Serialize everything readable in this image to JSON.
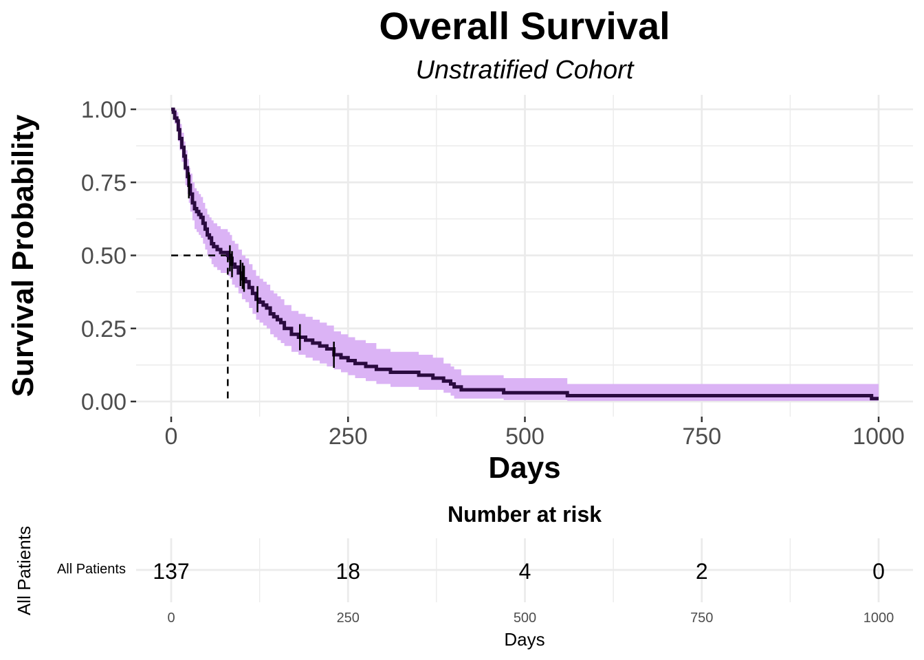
{
  "chart_data": [
    {
      "type": "line",
      "subtype": "kaplan-meier",
      "title": "Overall Survival",
      "subtitle": "Unstratified Cohort",
      "xlabel": "Days",
      "ylabel": "Survival Probability",
      "xlim": [
        0,
        1000
      ],
      "ylim": [
        0,
        1
      ],
      "xticks": [
        "0",
        "250",
        "500",
        "750",
        "1000"
      ],
      "yticks": [
        "0.00",
        "0.25",
        "0.50",
        "0.75",
        "1.00"
      ],
      "grid": true,
      "legend": "none",
      "colors": {
        "line": "#2a0a3f",
        "ci": "#dbb3f5",
        "grid": "#ebebeb"
      },
      "median_survival_days": 80,
      "series": [
        {
          "x": [
            0,
            3,
            5,
            8,
            10,
            12,
            15,
            18,
            20,
            23,
            25,
            27,
            30,
            33,
            36,
            39,
            42,
            45,
            48,
            51,
            54,
            57,
            60,
            65,
            70,
            75,
            80,
            83,
            86,
            90,
            95,
            100,
            105,
            110,
            115,
            120,
            125,
            130,
            135,
            140,
            145,
            150,
            155,
            160,
            170,
            180,
            190,
            200,
            210,
            220,
            230,
            240,
            250,
            260,
            275,
            290,
            310,
            330,
            350,
            370,
            385,
            395,
            400,
            410,
            420,
            450,
            470,
            500,
            530,
            555,
            560,
            590,
            700,
            800,
            900,
            990,
            1000
          ],
          "y": [
            1.0,
            0.99,
            0.97,
            0.96,
            0.93,
            0.9,
            0.87,
            0.84,
            0.8,
            0.77,
            0.74,
            0.71,
            0.68,
            0.66,
            0.65,
            0.64,
            0.63,
            0.61,
            0.59,
            0.57,
            0.56,
            0.54,
            0.53,
            0.52,
            0.51,
            0.51,
            0.5,
            0.49,
            0.47,
            0.46,
            0.44,
            0.42,
            0.41,
            0.39,
            0.37,
            0.35,
            0.34,
            0.33,
            0.32,
            0.3,
            0.29,
            0.28,
            0.27,
            0.25,
            0.23,
            0.22,
            0.21,
            0.2,
            0.19,
            0.18,
            0.16,
            0.15,
            0.14,
            0.13,
            0.12,
            0.11,
            0.1,
            0.1,
            0.09,
            0.08,
            0.07,
            0.06,
            0.05,
            0.04,
            0.04,
            0.04,
            0.03,
            0.03,
            0.03,
            0.03,
            0.02,
            0.02,
            0.02,
            0.02,
            0.02,
            0.01,
            0.01
          ],
          "lower": [
            1.0,
            0.97,
            0.95,
            0.93,
            0.89,
            0.86,
            0.82,
            0.79,
            0.74,
            0.71,
            0.68,
            0.65,
            0.62,
            0.59,
            0.58,
            0.57,
            0.56,
            0.54,
            0.52,
            0.5,
            0.49,
            0.47,
            0.46,
            0.45,
            0.44,
            0.44,
            0.43,
            0.42,
            0.4,
            0.39,
            0.37,
            0.35,
            0.34,
            0.32,
            0.3,
            0.28,
            0.27,
            0.26,
            0.25,
            0.23,
            0.22,
            0.21,
            0.2,
            0.19,
            0.17,
            0.16,
            0.15,
            0.14,
            0.13,
            0.12,
            0.11,
            0.1,
            0.09,
            0.08,
            0.07,
            0.06,
            0.05,
            0.05,
            0.04,
            0.04,
            0.03,
            0.02,
            0.01,
            0.01,
            0.01,
            0.01,
            0.005,
            0.005,
            0.005,
            0.005,
            0.002,
            0.002,
            0.002,
            0.002,
            0.002,
            0.002,
            0.002
          ],
          "upper": [
            1.0,
            1.0,
            1.0,
            0.99,
            0.97,
            0.95,
            0.92,
            0.89,
            0.86,
            0.83,
            0.8,
            0.78,
            0.75,
            0.73,
            0.72,
            0.71,
            0.7,
            0.68,
            0.66,
            0.64,
            0.63,
            0.62,
            0.61,
            0.6,
            0.59,
            0.59,
            0.58,
            0.57,
            0.55,
            0.54,
            0.52,
            0.5,
            0.49,
            0.47,
            0.45,
            0.43,
            0.42,
            0.41,
            0.4,
            0.38,
            0.37,
            0.36,
            0.35,
            0.33,
            0.31,
            0.3,
            0.29,
            0.28,
            0.27,
            0.26,
            0.24,
            0.23,
            0.22,
            0.21,
            0.2,
            0.18,
            0.17,
            0.17,
            0.16,
            0.15,
            0.13,
            0.12,
            0.11,
            0.09,
            0.09,
            0.09,
            0.08,
            0.08,
            0.08,
            0.08,
            0.06,
            0.06,
            0.06,
            0.06,
            0.06,
            0.06,
            0.06
          ]
        }
      ],
      "censor_marks": [
        {
          "x": 25,
          "y": 0.74
        },
        {
          "x": 83,
          "y": 0.49
        },
        {
          "x": 86,
          "y": 0.47
        },
        {
          "x": 98,
          "y": 0.44
        },
        {
          "x": 101,
          "y": 0.43
        },
        {
          "x": 103,
          "y": 0.42
        },
        {
          "x": 122,
          "y": 0.35
        },
        {
          "x": 182,
          "y": 0.22
        },
        {
          "x": 230,
          "y": 0.16
        }
      ]
    },
    {
      "type": "table",
      "title": "Number at risk",
      "xlabel": "Days",
      "ylabel": "All Patients",
      "row_label": "All Patients",
      "x": [
        0,
        250,
        500,
        750,
        1000
      ],
      "xticks": [
        "0",
        "250",
        "500",
        "750",
        "1000"
      ],
      "values": [
        "137",
        "18",
        "4",
        "2",
        "0"
      ]
    }
  ]
}
